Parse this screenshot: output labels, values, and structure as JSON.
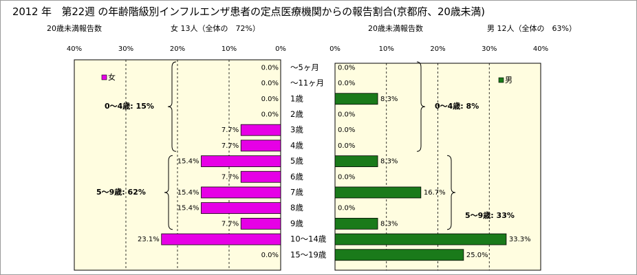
{
  "title": "2012 年　第22週 の年齢階級別インフルエンザ患者の定点医療機関からの報告割合(京都府、20歳未満)",
  "left_header": {
    "label": "20歳未満報告数",
    "summary": "女 13人（全体の　72%）"
  },
  "right_header": {
    "label": "20歳未満報告数",
    "summary": "男 12人（全体の　63%）"
  },
  "colors": {
    "female": "#e600e6",
    "male": "#1a7a1a",
    "plot_bg": "#fffde0"
  },
  "chart_data": [
    {
      "type": "bar",
      "orientation": "horizontal",
      "direction": "right-to-left",
      "legend": "女",
      "legend_position": "top-left",
      "xlim": [
        0,
        40
      ],
      "xticks": [
        "40%",
        "30%",
        "20%",
        "10%",
        "0%"
      ],
      "xtick_values": [
        40,
        30,
        20,
        10,
        0
      ],
      "grid": true,
      "values": [
        0.0,
        0.0,
        0.0,
        0.0,
        7.7,
        7.7,
        15.4,
        7.7,
        15.4,
        15.4,
        7.7,
        23.1,
        0.0
      ],
      "labels": [
        "0.0%",
        "0.0%",
        "0.0%",
        "0.0%",
        "7.7%",
        "7.7%",
        "15.4%",
        "7.7%",
        "15.4%",
        "15.4%",
        "7.7%",
        "23.1%",
        "0.0%"
      ],
      "annotations": [
        {
          "text": "0～4歳: 15%",
          "from": 0,
          "to": 5
        },
        {
          "text": "5～9歳: 62%",
          "from": 6,
          "to": 10
        }
      ]
    },
    {
      "type": "bar",
      "orientation": "horizontal",
      "direction": "left-to-right",
      "legend": "男",
      "legend_position": "top-right",
      "xlim": [
        0,
        40
      ],
      "xticks": [
        "0%",
        "10%",
        "20%",
        "30%",
        "40%"
      ],
      "xtick_values": [
        0,
        10,
        20,
        30,
        40
      ],
      "grid": true,
      "values": [
        0.0,
        0.0,
        8.3,
        0.0,
        0.0,
        0.0,
        8.3,
        0.0,
        16.7,
        0.0,
        8.3,
        33.3,
        25.0
      ],
      "labels": [
        "0.0%",
        "0.0%",
        "8.3%",
        "0.0%",
        "0.0%",
        "0.0%",
        "8.3%",
        "0.0%",
        "16.7%",
        "0.0%",
        "8.3%",
        "33.3%",
        "25.0%"
      ],
      "annotations": [
        {
          "text": "0～4歳: 8%",
          "from": 0,
          "to": 5
        },
        {
          "text": "5～9歳: 33%",
          "from": 6,
          "to": 10
        }
      ]
    }
  ],
  "categories": [
    "～5ヶ月",
    "～11ヶ月",
    "1歳",
    "2歳",
    "3歳",
    "4歳",
    "5歳",
    "6歳",
    "7歳",
    "8歳",
    "9歳",
    "10～14歳",
    "15～19歳"
  ]
}
